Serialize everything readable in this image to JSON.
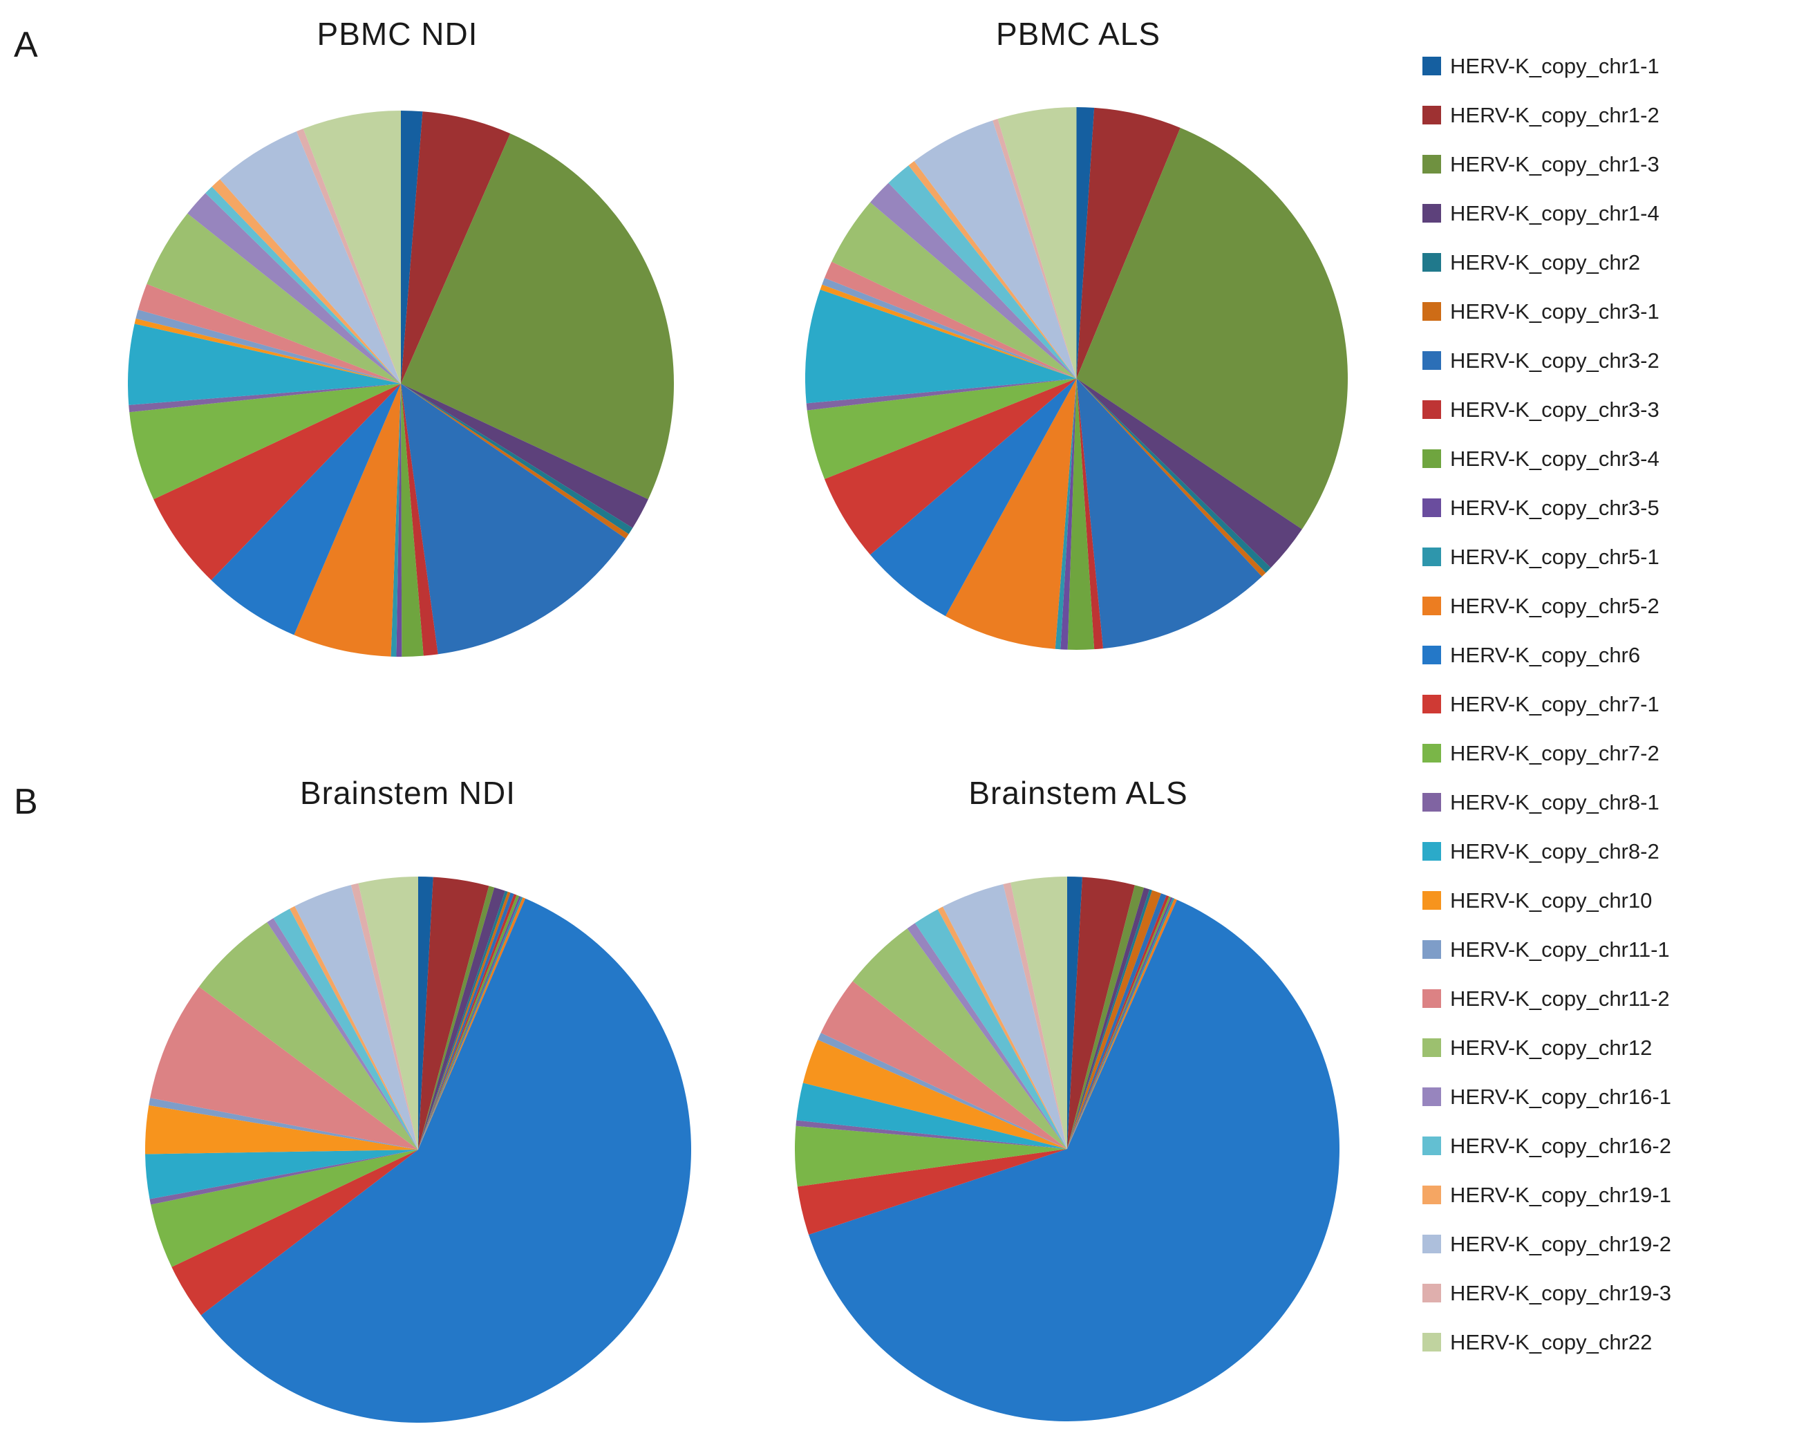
{
  "page": {
    "background_color": "#FFFFFF"
  },
  "panels": [
    {
      "label": "A"
    },
    {
      "label": "B"
    }
  ],
  "chart_data": {
    "type": "pie",
    "legend_position": "right",
    "categories": [
      "HERV-K_copy_chr1-1",
      "HERV-K_copy_chr1-2",
      "HERV-K_copy_chr1-3",
      "HERV-K_copy_chr1-4",
      "HERV-K_copy_chr2",
      "HERV-K_copy_chr3-1",
      "HERV-K_copy_chr3-2",
      "HERV-K_copy_chr3-3",
      "HERV-K_copy_chr3-4",
      "HERV-K_copy_chr3-5",
      "HERV-K_copy_chr5-1",
      "HERV-K_copy_chr5-2",
      "HERV-K_copy_chr6",
      "HERV-K_copy_chr7-1",
      "HERV-K_copy_chr7-2",
      "HERV-K_copy_chr8-1",
      "HERV-K_copy_chr8-2",
      "HERV-K_copy_chr10",
      "HERV-K_copy_chr11-1",
      "HERV-K_copy_chr11-2",
      "HERV-K_copy_chr12",
      "HERV-K_copy_chr16-1",
      "HERV-K_copy_chr16-2",
      "HERV-K_copy_chr19-1",
      "HERV-K_copy_chr19-2",
      "HERV-K_copy_chr19-3",
      "HERV-K_copy_chr22"
    ],
    "colors": [
      "#155FA0",
      "#9E3132",
      "#6F9140",
      "#5D417B",
      "#20798C",
      "#CE6C16",
      "#2C6FB7",
      "#BE3434",
      "#6FA53F",
      "#6A4D9E",
      "#2E96AC",
      "#EC7D21",
      "#2478C8",
      "#CF3A34",
      "#7AB648",
      "#8064A2",
      "#2BAAC9",
      "#F7941D",
      "#7E9DC8",
      "#DC8284",
      "#9CC06F",
      "#9785BE",
      "#63BFD2",
      "#F5A663",
      "#ADBFDC",
      "#DFAFAD",
      "#C0D39F"
    ],
    "series": [
      {
        "name": "PBMC NDI",
        "values": [
          1.2,
          5.0,
          24.0,
          1.8,
          0.4,
          0.3,
          12.5,
          0.8,
          1.2,
          0.3,
          0.3,
          5.5,
          5.5,
          5.5,
          5.0,
          0.4,
          4.5,
          0.3,
          0.5,
          1.5,
          4.5,
          1.5,
          0.5,
          0.6,
          5.0,
          0.4,
          5.5
        ]
      },
      {
        "name": "PBMC ALS",
        "values": [
          1.0,
          5.0,
          27.0,
          2.8,
          0.4,
          0.3,
          10.0,
          0.5,
          1.5,
          0.4,
          0.3,
          6.5,
          5.5,
          5.0,
          4.0,
          0.4,
          6.5,
          0.3,
          0.4,
          1.0,
          4.0,
          1.5,
          1.5,
          0.4,
          5.0,
          0.3,
          4.5
        ]
      },
      {
        "name": "Brainstem NDI",
        "values": [
          0.8,
          3.0,
          0.3,
          0.6,
          0.15,
          0.15,
          0.2,
          0.15,
          0.15,
          0.1,
          0.1,
          0.15,
          53.0,
          3.0,
          3.5,
          0.3,
          2.4,
          2.6,
          0.4,
          6.5,
          5.0,
          0.4,
          1.0,
          0.3,
          3.2,
          0.4,
          3.2
        ]
      },
      {
        "name": "Brainstem ALS",
        "values": [
          0.8,
          2.8,
          0.5,
          0.3,
          0.15,
          0.5,
          0.3,
          0.15,
          0.1,
          0.1,
          0.1,
          0.15,
          57.0,
          2.6,
          3.2,
          0.3,
          2.0,
          2.4,
          0.4,
          3.2,
          4.0,
          0.5,
          1.4,
          0.3,
          3.4,
          0.4,
          3.0
        ]
      }
    ]
  }
}
